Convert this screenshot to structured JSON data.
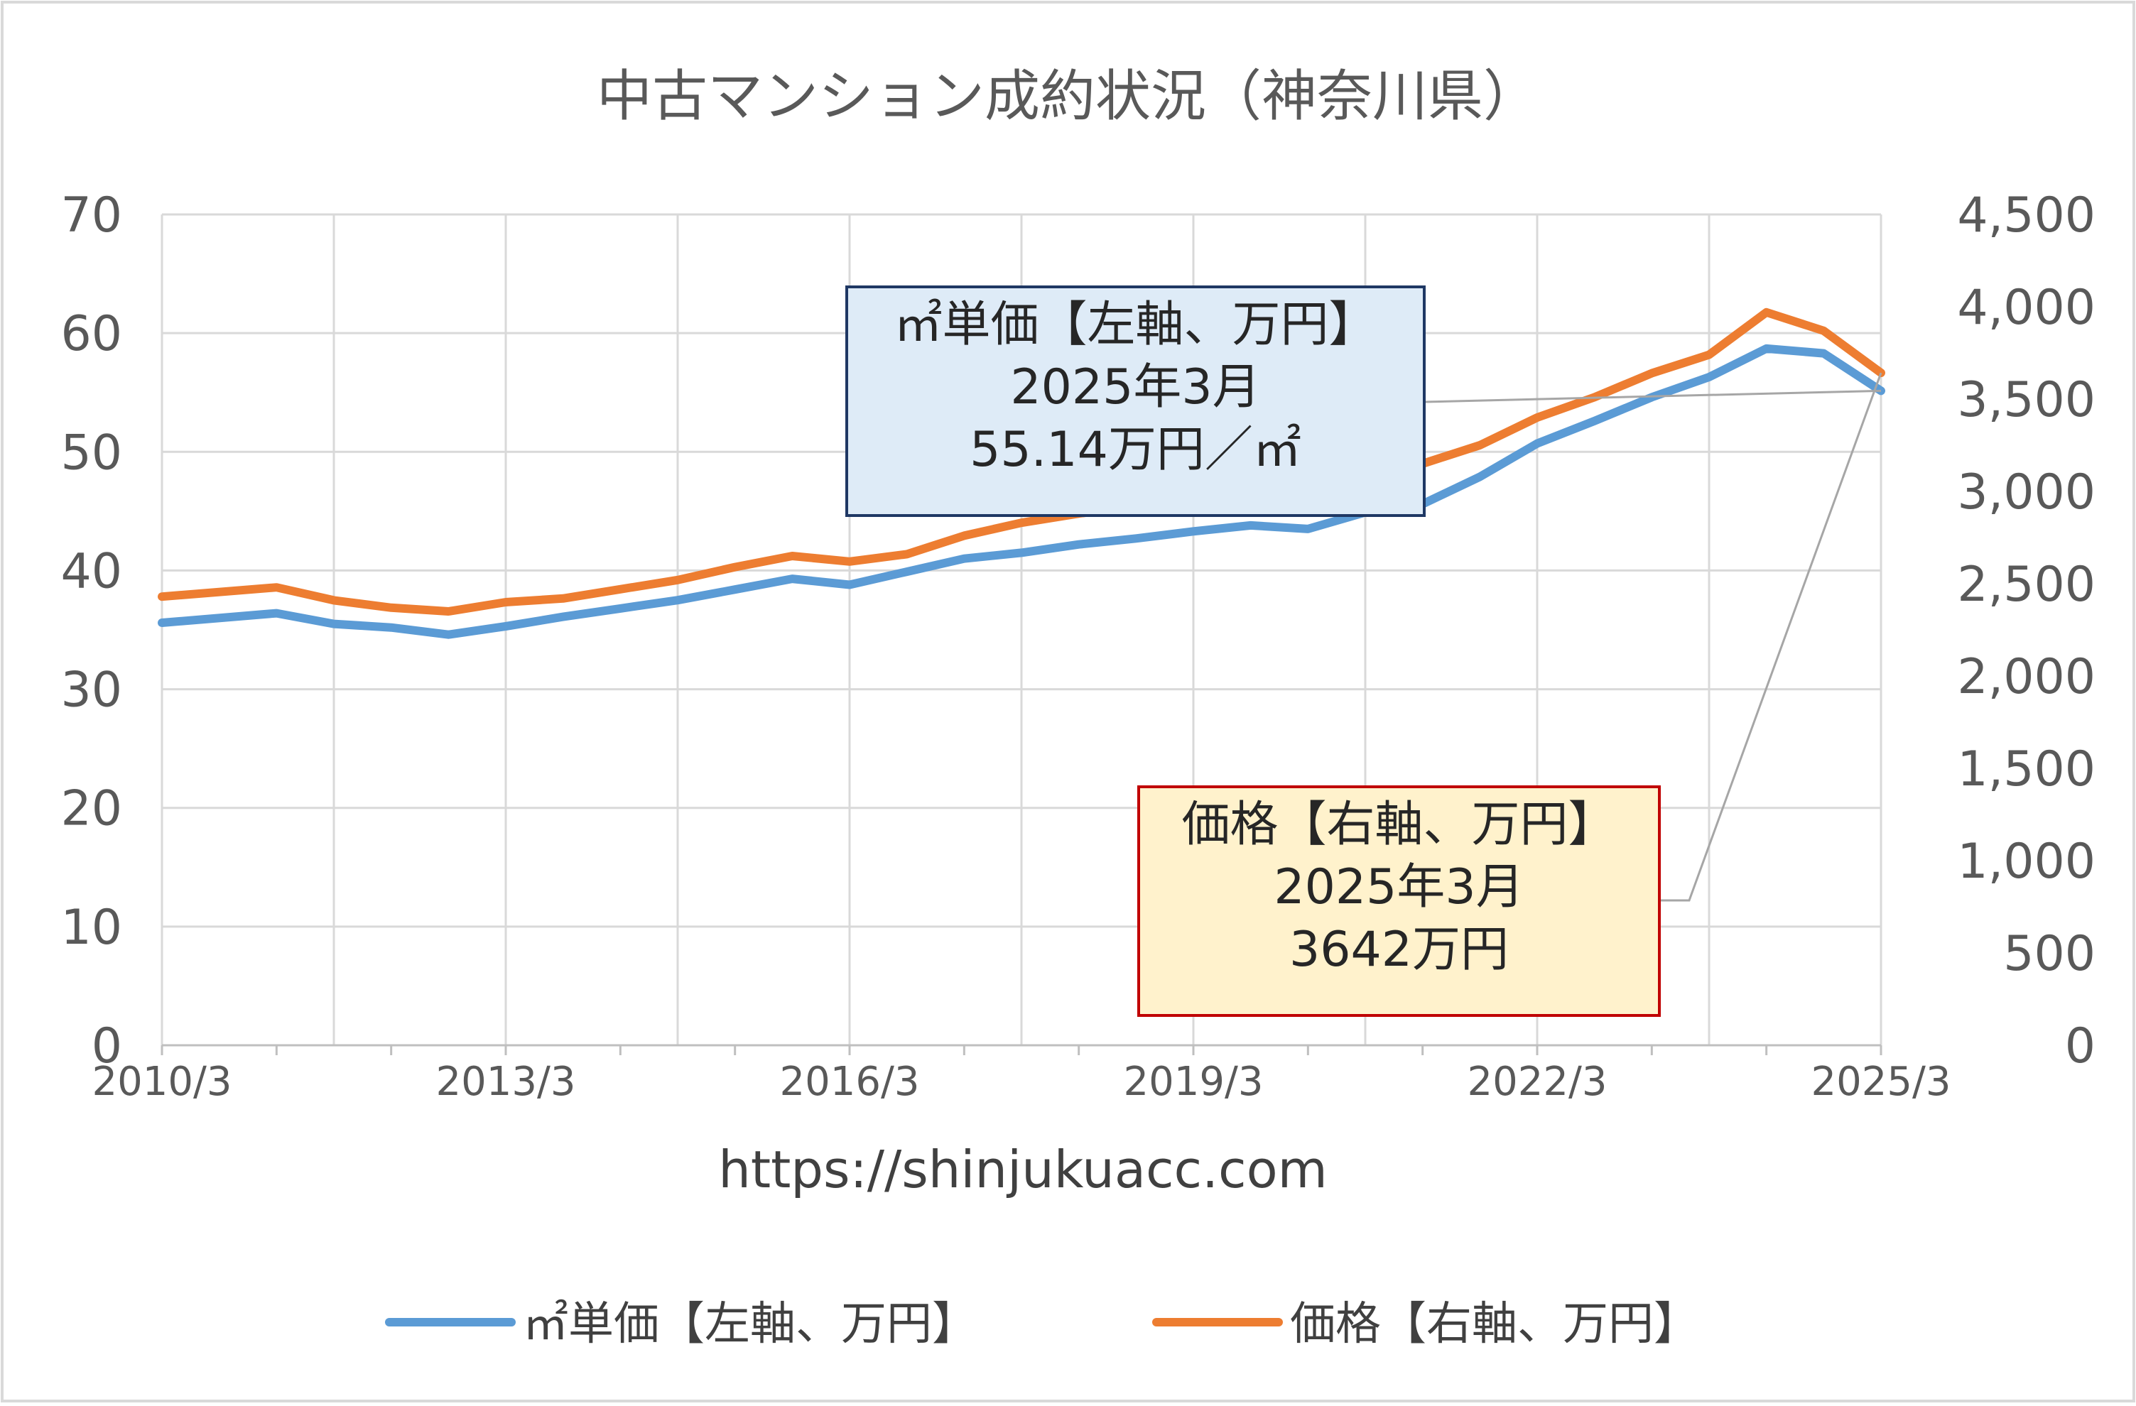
{
  "chart_data": {
    "type": "line",
    "title": "中古マンション成約状況（神奈川県）",
    "source_text": "https://shinjukuacc.com",
    "x_tick_labels": [
      "2010/3",
      "2013/3",
      "2016/3",
      "2019/3",
      "2022/3",
      "2025/3"
    ],
    "x_range": [
      "2010/3",
      "2025/3"
    ],
    "y_left": {
      "min": 0,
      "max": 70,
      "step": 10,
      "tick_labels": [
        "0",
        "10",
        "20",
        "30",
        "40",
        "50",
        "60",
        "70"
      ]
    },
    "y_right": {
      "min": 0,
      "max": 4500,
      "step": 500,
      "tick_labels": [
        "0",
        "500",
        "1,000",
        "1,500",
        "2,000",
        "2,500",
        "3,000",
        "3,500",
        "4,000",
        "4,500"
      ]
    },
    "grid": true,
    "legend_position": "bottom",
    "series": [
      {
        "name": "㎡単価【左軸、万円】",
        "axis": "left",
        "color": "#5B9BD5",
        "points": [
          [
            "2010/03",
            35.6
          ],
          [
            "2011/03",
            36.4
          ],
          [
            "2011/09",
            35.5
          ],
          [
            "2012/03",
            35.2
          ],
          [
            "2012/09",
            34.6
          ],
          [
            "2013/03",
            35.3
          ],
          [
            "2013/09",
            36.1
          ],
          [
            "2014/03",
            36.8
          ],
          [
            "2014/09",
            37.5
          ],
          [
            "2015/03",
            38.4
          ],
          [
            "2015/09",
            39.3
          ],
          [
            "2016/03",
            38.8
          ],
          [
            "2016/09",
            39.9
          ],
          [
            "2017/03",
            41.0
          ],
          [
            "2017/09",
            41.5
          ],
          [
            "2018/03",
            42.2
          ],
          [
            "2018/09",
            42.7
          ],
          [
            "2019/03",
            43.3
          ],
          [
            "2019/09",
            43.8
          ],
          [
            "2020/03",
            43.5
          ],
          [
            "2020/09",
            44.9
          ],
          [
            "2021/03",
            45.6
          ],
          [
            "2021/09",
            47.9
          ],
          [
            "2022/03",
            50.7
          ],
          [
            "2022/09",
            52.6
          ],
          [
            "2023/03",
            54.6
          ],
          [
            "2023/09",
            56.3
          ],
          [
            "2024/03",
            58.7
          ],
          [
            "2024/09",
            58.3
          ],
          [
            "2025/03",
            55.14
          ]
        ]
      },
      {
        "name": "価格【右軸、万円】",
        "axis": "right",
        "color": "#ED7D31",
        "points": [
          [
            "2010/03",
            2430
          ],
          [
            "2011/03",
            2480
          ],
          [
            "2011/09",
            2410
          ],
          [
            "2012/03",
            2370
          ],
          [
            "2012/09",
            2350
          ],
          [
            "2013/03",
            2400
          ],
          [
            "2013/09",
            2420
          ],
          [
            "2014/03",
            2470
          ],
          [
            "2014/09",
            2520
          ],
          [
            "2015/03",
            2590
          ],
          [
            "2015/09",
            2650
          ],
          [
            "2016/03",
            2620
          ],
          [
            "2016/09",
            2660
          ],
          [
            "2017/03",
            2760
          ],
          [
            "2017/09",
            2830
          ],
          [
            "2018/03",
            2880
          ],
          [
            "2018/09",
            2920
          ],
          [
            "2019/03",
            2950
          ],
          [
            "2019/09",
            3000
          ],
          [
            "2020/03",
            2940
          ],
          [
            "2020/09",
            3080
          ],
          [
            "2021/03",
            3150
          ],
          [
            "2021/09",
            3250
          ],
          [
            "2022/03",
            3400
          ],
          [
            "2022/09",
            3510
          ],
          [
            "2023/03",
            3640
          ],
          [
            "2023/09",
            3740
          ],
          [
            "2024/03",
            3970
          ],
          [
            "2024/09",
            3870
          ],
          [
            "2025/03",
            3642
          ]
        ]
      }
    ],
    "callouts": [
      {
        "series_index": 0,
        "lines": [
          "㎡単価【左軸、万円】",
          "2025年3月",
          "55.14万円／㎡"
        ],
        "fill": "#DEEBF7",
        "border": "#1F3864"
      },
      {
        "series_index": 1,
        "lines": [
          "価格【右軸、万円】",
          "2025年3月",
          "3642万円"
        ],
        "fill": "#FFF2CC",
        "border": "#C00000"
      }
    ]
  }
}
